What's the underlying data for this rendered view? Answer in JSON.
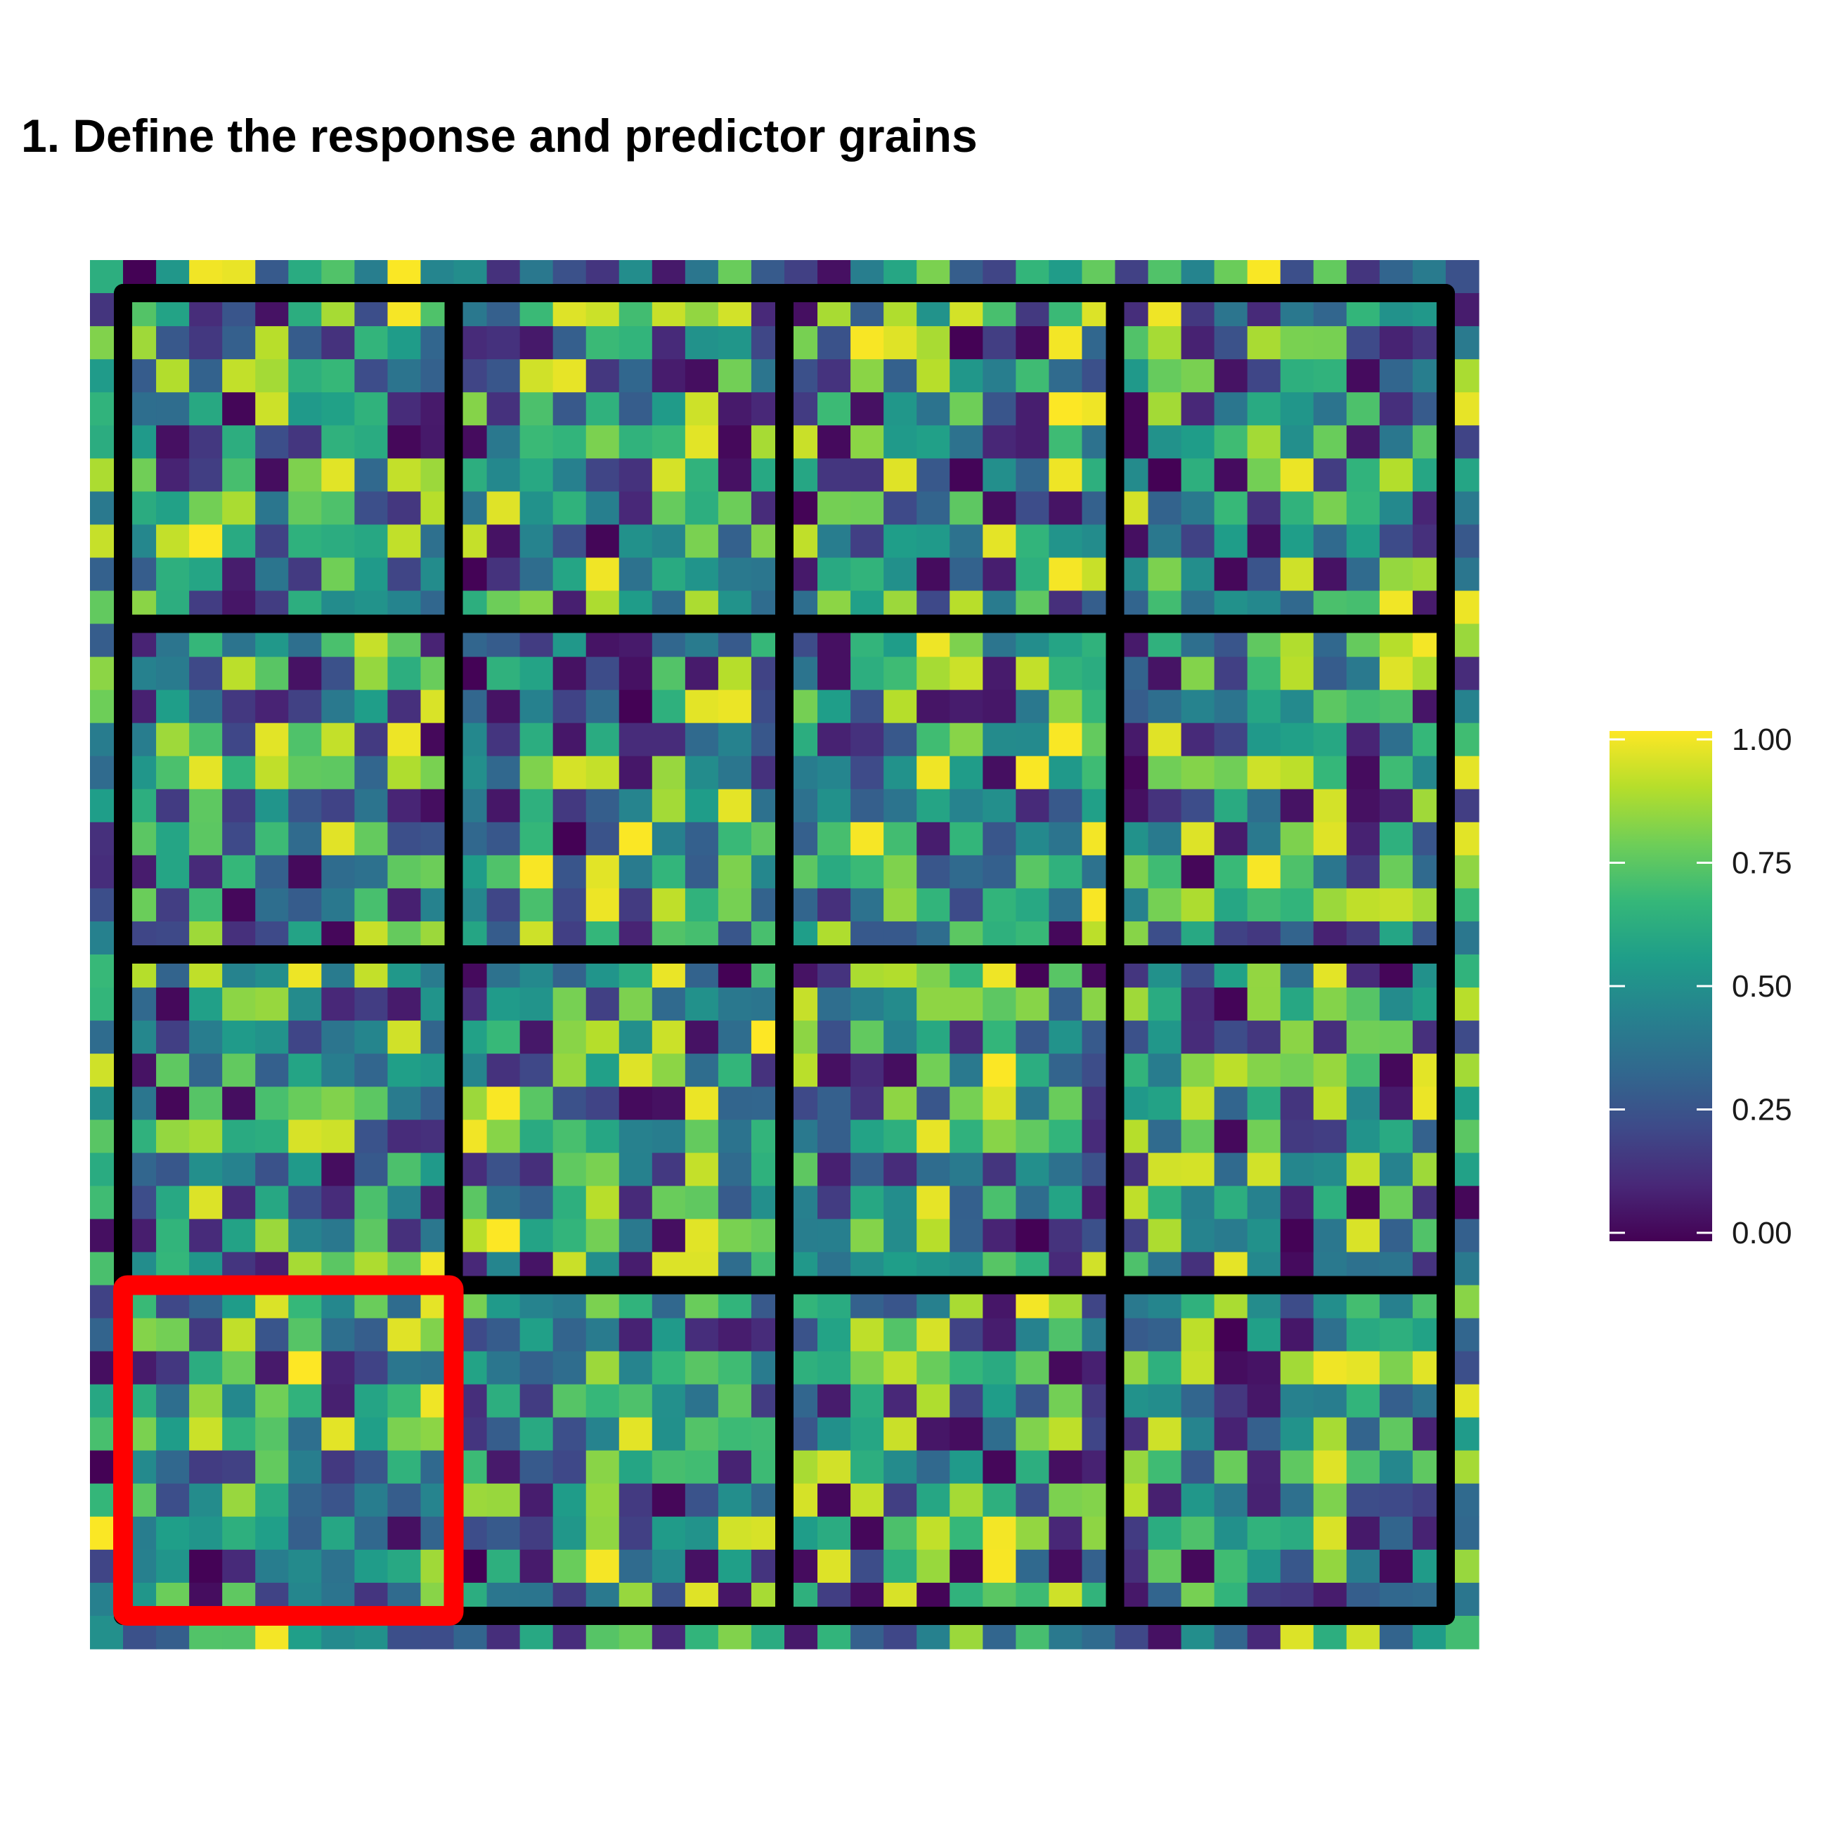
{
  "title": "1. Define the response and predictor grains",
  "chart_data": {
    "type": "heatmap",
    "title": "1. Define the response and predictor grains",
    "xlabel": "",
    "ylabel": "",
    "grid": false,
    "colormap": "viridis",
    "value_range": [
      0,
      1
    ],
    "n_rows": 42,
    "n_cols": 42,
    "random_seed": 1,
    "grain_overlay": {
      "response_grain_rows": 4,
      "response_grain_cols": 4,
      "predictor_cells_per_grain": 10,
      "highlighted_grain": "bottom-left",
      "highlight_color": "#ff0000",
      "grain_line_color": "#000000"
    },
    "legend": {
      "placement": "right",
      "ticks": [
        0.0,
        0.25,
        0.5,
        0.75,
        1.0
      ],
      "tick_labels": [
        "0.00",
        "0.25",
        "0.50",
        "0.75",
        "1.00"
      ],
      "colors": [
        "#440154",
        "#482878",
        "#3e4a89",
        "#31688e",
        "#26828e",
        "#1f9e89",
        "#35b779",
        "#6ece58",
        "#b5de2b",
        "#fde725"
      ]
    }
  }
}
